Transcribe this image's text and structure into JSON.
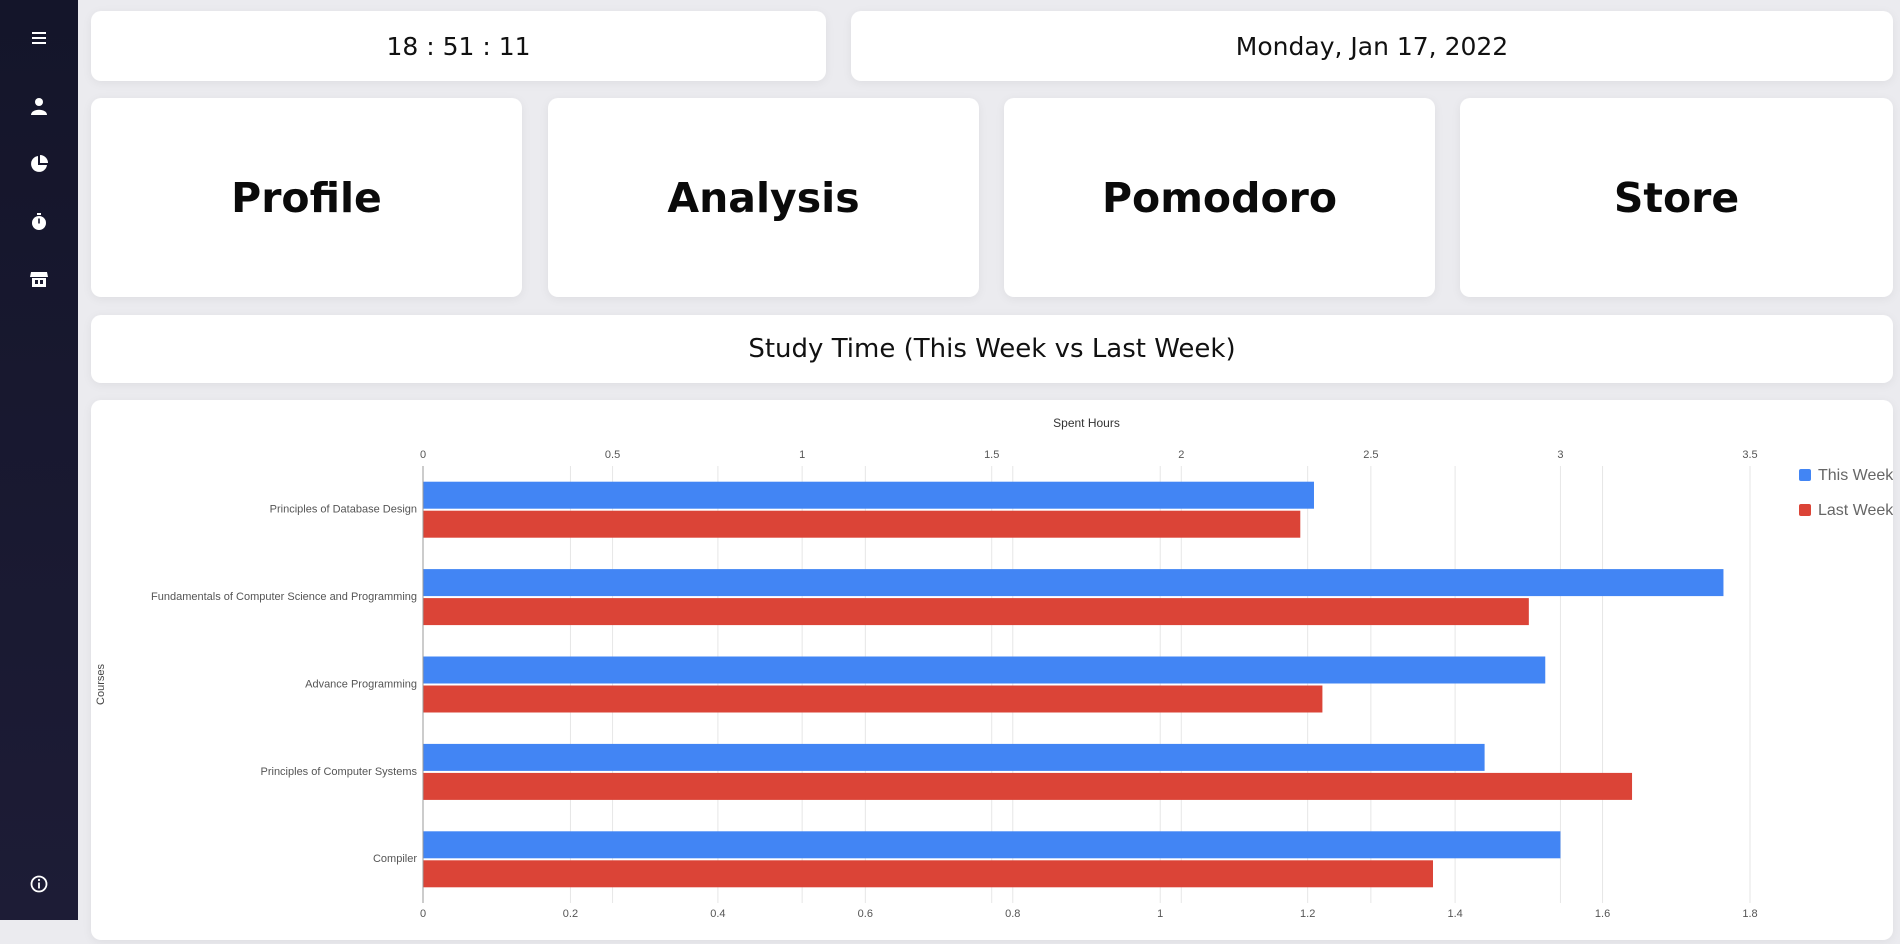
{
  "sidebar": {
    "items": [
      {
        "name": "menu-icon"
      },
      {
        "name": "user-icon"
      },
      {
        "name": "pie-chart-icon"
      },
      {
        "name": "stopwatch-icon"
      },
      {
        "name": "store-icon"
      },
      {
        "name": "info-icon"
      }
    ]
  },
  "header": {
    "clock": "18 : 51 : 11",
    "date": "Monday, Jan 17, 2022"
  },
  "nav": {
    "profile": "Profile",
    "analysis": "Analysis",
    "pomodoro": "Pomodoro",
    "store": "Store"
  },
  "section": {
    "title": "Study Time (This Week vs Last Week)"
  },
  "colors": {
    "this_week": "#4285f4",
    "last_week": "#db4437"
  },
  "chart_data": {
    "type": "bar",
    "orientation": "horizontal",
    "title": "",
    "top_axis_label": "Spent Hours",
    "ylabel": "Courses",
    "categories": [
      "Principles of Database Design",
      "Fundamentals of Computer Science and Programming",
      "Advance Programming",
      "Principles of Computer Systems",
      "Compiler"
    ],
    "series": [
      {
        "name": "This Week",
        "axis": "top",
        "values": [
          2.35,
          3.43,
          2.96,
          2.8,
          3.0
        ]
      },
      {
        "name": "Last Week",
        "axis": "bottom",
        "values": [
          1.19,
          1.5,
          1.22,
          1.64,
          1.37
        ]
      }
    ],
    "top_axis": {
      "range": [
        0,
        3.5
      ],
      "ticks": [
        "0",
        "0.5",
        "1",
        "1.5",
        "2",
        "2.5",
        "3",
        "3.5"
      ]
    },
    "bottom_axis": {
      "range": [
        0,
        1.8
      ],
      "ticks": [
        "0",
        "0.2",
        "0.4",
        "0.6",
        "0.8",
        "1",
        "1.2",
        "1.4",
        "1.6",
        "1.8"
      ]
    },
    "legend_position": "right",
    "grid": true
  }
}
